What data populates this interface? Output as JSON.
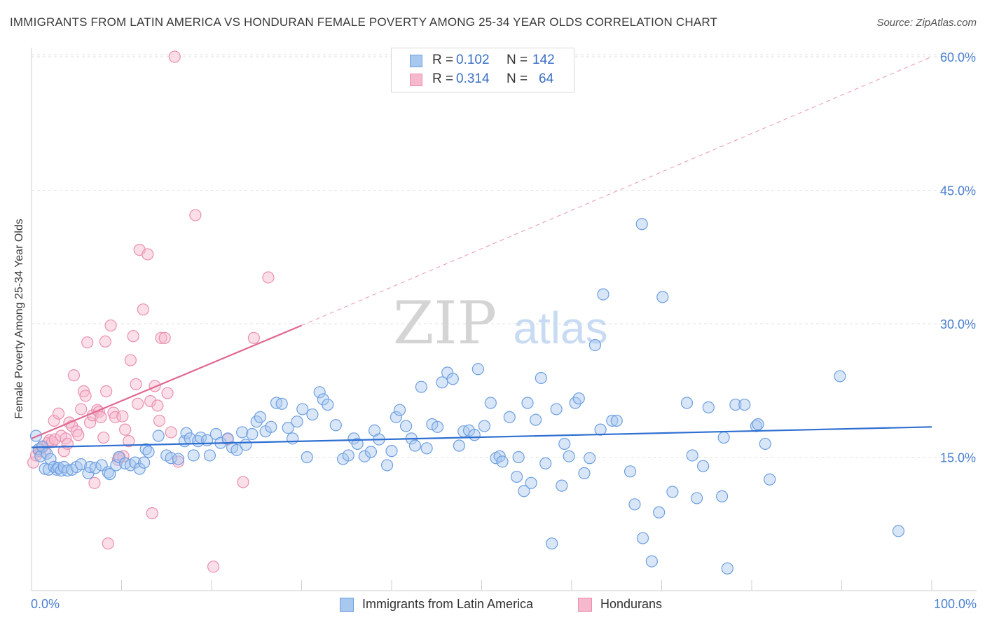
{
  "header": {
    "title": "IMMIGRANTS FROM LATIN AMERICA VS HONDURAN FEMALE POVERTY AMONG 25-34 YEAR OLDS CORRELATION CHART",
    "source": "Source: ZipAtlas.com"
  },
  "watermark": {
    "zip": "ZIP",
    "atlas": "atlas"
  },
  "legend": {
    "r_label": "R =",
    "n_label": "N =",
    "series1": {
      "r": "0.102",
      "n": "142"
    },
    "series2": {
      "r": "0.314",
      "n": "64"
    }
  },
  "colors": {
    "blue_fill": "#a8c8f0",
    "blue_stroke": "#6d9fe0",
    "blue_line": "#2e6fd1",
    "pink_fill": "#f6b8cc",
    "pink_stroke": "#ea8fb0",
    "pink_line": "#e06890",
    "tick_text": "#4a7fd0",
    "grid": "#e2e2e2"
  },
  "chart_data": {
    "type": "scatter",
    "title": "IMMIGRANTS FROM LATIN AMERICA VS HONDURAN FEMALE POVERTY AMONG 25-34 YEAR OLDS CORRELATION CHART",
    "xlabel": "",
    "ylabel": "Female Poverty Among 25-34 Year Olds",
    "xlim": [
      0,
      100
    ],
    "ylim": [
      0,
      60
    ],
    "x_tick_labels": [
      "0.0%",
      "100.0%"
    ],
    "y_ticks": [
      15,
      30,
      45,
      60
    ],
    "y_tick_labels": [
      "15.0%",
      "30.0%",
      "45.0%",
      "60.0%"
    ],
    "grid": true,
    "legend_position": "bottom",
    "series": [
      {
        "name": "Immigrants from Latin America",
        "r": 0.102,
        "n": 142,
        "trend": {
          "x": [
            0,
            100
          ],
          "y": [
            16.1,
            18.4
          ],
          "style": "solid"
        },
        "points": [
          [
            0.5,
            17.4
          ],
          [
            0.8,
            15.9
          ],
          [
            1.0,
            15.1
          ],
          [
            1.2,
            16.2
          ],
          [
            1.5,
            13.7
          ],
          [
            1.7,
            15.4
          ],
          [
            1.9,
            13.6
          ],
          [
            2.1,
            14.8
          ],
          [
            2.5,
            13.9
          ],
          [
            2.8,
            13.6
          ],
          [
            3.0,
            13.8
          ],
          [
            3.3,
            13.5
          ],
          [
            3.6,
            13.9
          ],
          [
            4.0,
            13.5
          ],
          [
            4.5,
            13.6
          ],
          [
            5.0,
            13.9
          ],
          [
            5.5,
            14.2
          ],
          [
            6.3,
            13.2
          ],
          [
            6.5,
            13.9
          ],
          [
            7.1,
            13.8
          ],
          [
            7.8,
            14.1
          ],
          [
            8.5,
            13.3
          ],
          [
            8.7,
            13.1
          ],
          [
            9.4,
            14.1
          ],
          [
            9.7,
            15.0
          ],
          [
            10.4,
            14.3
          ],
          [
            11.0,
            14.1
          ],
          [
            11.5,
            14.4
          ],
          [
            12.0,
            13.7
          ],
          [
            12.5,
            14.4
          ],
          [
            12.7,
            15.9
          ],
          [
            13.0,
            15.6
          ],
          [
            14.1,
            17.4
          ],
          [
            15.0,
            15.2
          ],
          [
            15.5,
            14.9
          ],
          [
            16.3,
            14.8
          ],
          [
            17.0,
            16.8
          ],
          [
            17.2,
            17.7
          ],
          [
            17.6,
            17.1
          ],
          [
            18.0,
            15.2
          ],
          [
            18.5,
            16.8
          ],
          [
            18.8,
            17.2
          ],
          [
            19.5,
            16.9
          ],
          [
            19.8,
            15.2
          ],
          [
            20.5,
            17.6
          ],
          [
            21.0,
            16.6
          ],
          [
            21.8,
            17.1
          ],
          [
            22.3,
            16.1
          ],
          [
            22.8,
            15.8
          ],
          [
            23.4,
            17.8
          ],
          [
            23.8,
            16.4
          ],
          [
            24.5,
            17.6
          ],
          [
            25.0,
            19.0
          ],
          [
            25.4,
            19.5
          ],
          [
            26.0,
            17.9
          ],
          [
            26.6,
            18.4
          ],
          [
            27.2,
            21.1
          ],
          [
            27.8,
            21.0
          ],
          [
            28.5,
            18.3
          ],
          [
            29.0,
            17.1
          ],
          [
            29.5,
            19.0
          ],
          [
            30.1,
            20.4
          ],
          [
            30.6,
            15.0
          ],
          [
            31.2,
            19.8
          ],
          [
            32.0,
            22.3
          ],
          [
            32.4,
            21.5
          ],
          [
            32.9,
            20.9
          ],
          [
            33.8,
            18.6
          ],
          [
            34.6,
            14.8
          ],
          [
            35.2,
            15.2
          ],
          [
            35.8,
            17.1
          ],
          [
            36.2,
            16.5
          ],
          [
            37.0,
            15.1
          ],
          [
            37.7,
            15.6
          ],
          [
            38.1,
            18.0
          ],
          [
            38.6,
            17.0
          ],
          [
            39.5,
            14.1
          ],
          [
            40.0,
            15.7
          ],
          [
            40.5,
            19.5
          ],
          [
            40.9,
            20.3
          ],
          [
            41.6,
            18.5
          ],
          [
            42.2,
            17.1
          ],
          [
            42.6,
            16.3
          ],
          [
            43.3,
            22.9
          ],
          [
            43.9,
            16.0
          ],
          [
            44.5,
            18.7
          ],
          [
            45.1,
            18.4
          ],
          [
            45.6,
            23.4
          ],
          [
            46.2,
            24.5
          ],
          [
            46.8,
            23.8
          ],
          [
            47.5,
            16.3
          ],
          [
            48.0,
            17.9
          ],
          [
            48.6,
            18.0
          ],
          [
            49.2,
            17.5
          ],
          [
            49.6,
            24.9
          ],
          [
            50.3,
            18.5
          ],
          [
            51.0,
            21.1
          ],
          [
            51.6,
            14.9
          ],
          [
            52.0,
            15.1
          ],
          [
            52.3,
            14.5
          ],
          [
            53.1,
            19.5
          ],
          [
            53.9,
            12.8
          ],
          [
            54.1,
            15.0
          ],
          [
            54.7,
            11.2
          ],
          [
            55.1,
            21.1
          ],
          [
            55.5,
            12.1
          ],
          [
            56.0,
            19.2
          ],
          [
            56.6,
            23.9
          ],
          [
            57.1,
            14.3
          ],
          [
            57.8,
            5.3
          ],
          [
            58.3,
            20.4
          ],
          [
            58.9,
            11.8
          ],
          [
            59.2,
            16.5
          ],
          [
            59.7,
            15.1
          ],
          [
            60.4,
            21.1
          ],
          [
            60.8,
            21.6
          ],
          [
            61.4,
            13.2
          ],
          [
            62.0,
            14.9
          ],
          [
            62.6,
            27.6
          ],
          [
            63.2,
            18.1
          ],
          [
            63.5,
            33.3
          ],
          [
            64.5,
            19.1
          ],
          [
            65.0,
            19.1
          ],
          [
            66.5,
            13.4
          ],
          [
            67.0,
            9.7
          ],
          [
            67.8,
            41.2
          ],
          [
            67.9,
            5.9
          ],
          [
            68.9,
            3.3
          ],
          [
            69.7,
            8.8
          ],
          [
            70.1,
            33.0
          ],
          [
            71.2,
            11.1
          ],
          [
            72.8,
            21.1
          ],
          [
            73.4,
            15.2
          ],
          [
            73.9,
            10.4
          ],
          [
            74.6,
            14.0
          ],
          [
            75.2,
            20.6
          ],
          [
            76.7,
            10.6
          ],
          [
            76.9,
            17.2
          ],
          [
            77.3,
            2.5
          ],
          [
            78.2,
            20.9
          ],
          [
            79.2,
            20.9
          ],
          [
            80.5,
            18.5
          ],
          [
            80.7,
            18.7
          ],
          [
            81.5,
            16.5
          ],
          [
            82.0,
            12.5
          ],
          [
            89.8,
            24.1
          ],
          [
            96.3,
            6.7
          ]
        ]
      },
      {
        "name": "Hondurans",
        "r": 0.314,
        "n": 64,
        "trend": {
          "x": [
            0,
            30
          ],
          "y": [
            17.1,
            29.8
          ],
          "x_dashed": [
            30,
            100
          ],
          "y_dashed": [
            29.8,
            60.0
          ]
        },
        "points": [
          [
            0.2,
            14.4
          ],
          [
            0.5,
            15.2
          ],
          [
            0.8,
            15.7
          ],
          [
            1.0,
            15.9
          ],
          [
            1.2,
            16.1
          ],
          [
            1.5,
            15.6
          ],
          [
            1.8,
            16.6
          ],
          [
            2.0,
            16.9
          ],
          [
            2.3,
            16.7
          ],
          [
            2.5,
            19.1
          ],
          [
            2.6,
            17.0
          ],
          [
            3.0,
            19.9
          ],
          [
            3.3,
            17.4
          ],
          [
            3.6,
            15.7
          ],
          [
            3.8,
            17.1
          ],
          [
            4.0,
            16.5
          ],
          [
            4.2,
            18.9
          ],
          [
            4.5,
            18.5
          ],
          [
            4.7,
            24.2
          ],
          [
            5.0,
            17.9
          ],
          [
            5.2,
            17.5
          ],
          [
            5.5,
            20.4
          ],
          [
            5.8,
            22.4
          ],
          [
            6.0,
            21.9
          ],
          [
            6.2,
            27.9
          ],
          [
            6.5,
            18.9
          ],
          [
            6.8,
            19.7
          ],
          [
            7.0,
            12.1
          ],
          [
            7.3,
            20.3
          ],
          [
            7.5,
            20.1
          ],
          [
            7.7,
            19.5
          ],
          [
            8.0,
            17.2
          ],
          [
            8.2,
            28.0
          ],
          [
            8.3,
            22.4
          ],
          [
            8.5,
            5.3
          ],
          [
            8.8,
            29.8
          ],
          [
            9.1,
            20.0
          ],
          [
            9.3,
            19.5
          ],
          [
            9.6,
            14.7
          ],
          [
            9.8,
            15.0
          ],
          [
            10.1,
            19.6
          ],
          [
            10.2,
            15.1
          ],
          [
            10.4,
            18.1
          ],
          [
            10.8,
            16.8
          ],
          [
            11.0,
            25.9
          ],
          [
            11.3,
            28.6
          ],
          [
            11.6,
            23.2
          ],
          [
            11.8,
            21.0
          ],
          [
            12.0,
            38.3
          ],
          [
            12.4,
            31.6
          ],
          [
            12.9,
            37.8
          ],
          [
            13.2,
            21.3
          ],
          [
            13.4,
            8.7
          ],
          [
            13.7,
            23.0
          ],
          [
            14.0,
            20.8
          ],
          [
            14.2,
            19.1
          ],
          [
            14.4,
            28.4
          ],
          [
            14.8,
            28.4
          ],
          [
            15.1,
            22.2
          ],
          [
            15.5,
            17.8
          ],
          [
            15.9,
            60.0
          ],
          [
            16.3,
            14.5
          ],
          [
            18.2,
            42.2
          ],
          [
            20.2,
            2.7
          ],
          [
            21.8,
            17.0
          ],
          [
            23.5,
            12.2
          ],
          [
            24.7,
            28.4
          ],
          [
            26.3,
            35.2
          ]
        ]
      }
    ]
  }
}
